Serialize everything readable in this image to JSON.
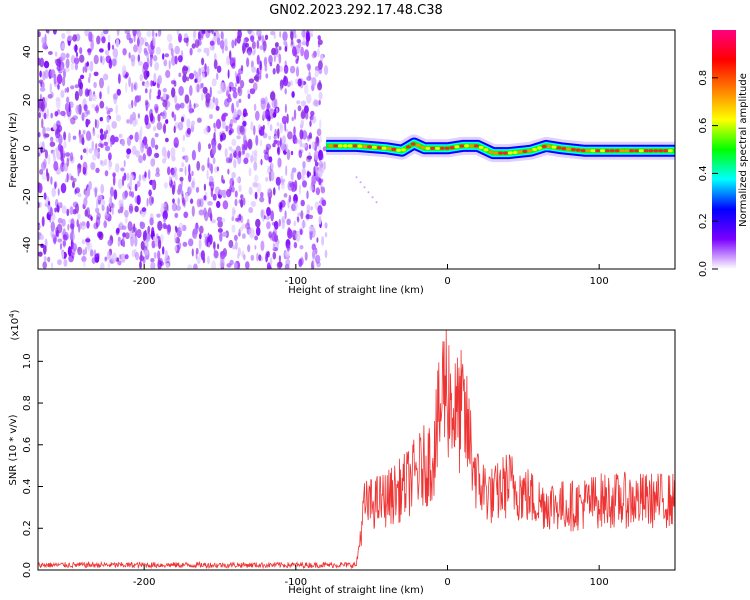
{
  "title": "GN02.2023.292.17.48.C38",
  "chart_data": [
    {
      "type": "heatmap",
      "xlabel": "Height of straight line (km)",
      "ylabel": "Frequency (Hz)",
      "xlim": [
        -270,
        150
      ],
      "ylim": [
        -50,
        49
      ],
      "x_ticks": [
        -200,
        -100,
        0,
        100
      ],
      "y_ticks": [
        -40,
        -20,
        0,
        20,
        40
      ],
      "noise_region_x": [
        -270,
        -80
      ],
      "signal_region_x": [
        -80,
        150
      ],
      "ridge": [
        [
          -80,
          1
        ],
        [
          -60,
          1
        ],
        [
          -40,
          0
        ],
        [
          -30,
          -1
        ],
        [
          -22,
          2
        ],
        [
          -15,
          0
        ],
        [
          0,
          0
        ],
        [
          10,
          1
        ],
        [
          20,
          1
        ],
        [
          30,
          -2
        ],
        [
          40,
          -2
        ],
        [
          55,
          -1
        ],
        [
          65,
          1
        ],
        [
          75,
          0
        ],
        [
          90,
          -1
        ],
        [
          110,
          -1
        ],
        [
          150,
          -1
        ]
      ],
      "colorbar": {
        "label": "Normalized spectral amplitude",
        "range": [
          0,
          1
        ],
        "ticks": [
          "0.0",
          "0.2",
          "0.4",
          "0.6",
          "0.8"
        ],
        "colors": [
          "#ffffff",
          "#7a00ff",
          "#0000ff",
          "#00ffff",
          "#00ff00",
          "#ffff00",
          "#ff8000",
          "#ff0000",
          "#ff0080"
        ]
      }
    },
    {
      "type": "line",
      "xlabel": "Height of straight line (km)",
      "ylabel": "SNR (10 * v/v)",
      "y_multiplier": "(x10",
      "y_multiplier_exp": "4",
      "y_multiplier_close": ")",
      "xlim": [
        -270,
        150
      ],
      "ylim": [
        0,
        1.15
      ],
      "x_ticks": [
        -200,
        -100,
        0,
        100
      ],
      "y_ticks": [
        "0.0",
        "0.2",
        "0.4",
        "0.6",
        "0.8",
        "1.0"
      ],
      "color": "#ee3333",
      "envelope": [
        [
          -270,
          0.03
        ],
        [
          -60,
          0.03
        ],
        [
          -57,
          0.2
        ],
        [
          -55,
          0.33
        ],
        [
          -40,
          0.37
        ],
        [
          -30,
          0.42
        ],
        [
          -20,
          0.5
        ],
        [
          -10,
          0.58
        ],
        [
          -5,
          0.8
        ],
        [
          -2,
          1.0
        ],
        [
          0,
          0.95
        ],
        [
          5,
          0.8
        ],
        [
          10,
          0.82
        ],
        [
          15,
          0.65
        ],
        [
          20,
          0.45
        ],
        [
          30,
          0.38
        ],
        [
          40,
          0.45
        ],
        [
          50,
          0.4
        ],
        [
          60,
          0.35
        ],
        [
          80,
          0.33
        ],
        [
          100,
          0.36
        ],
        [
          120,
          0.36
        ],
        [
          150,
          0.36
        ]
      ]
    }
  ]
}
